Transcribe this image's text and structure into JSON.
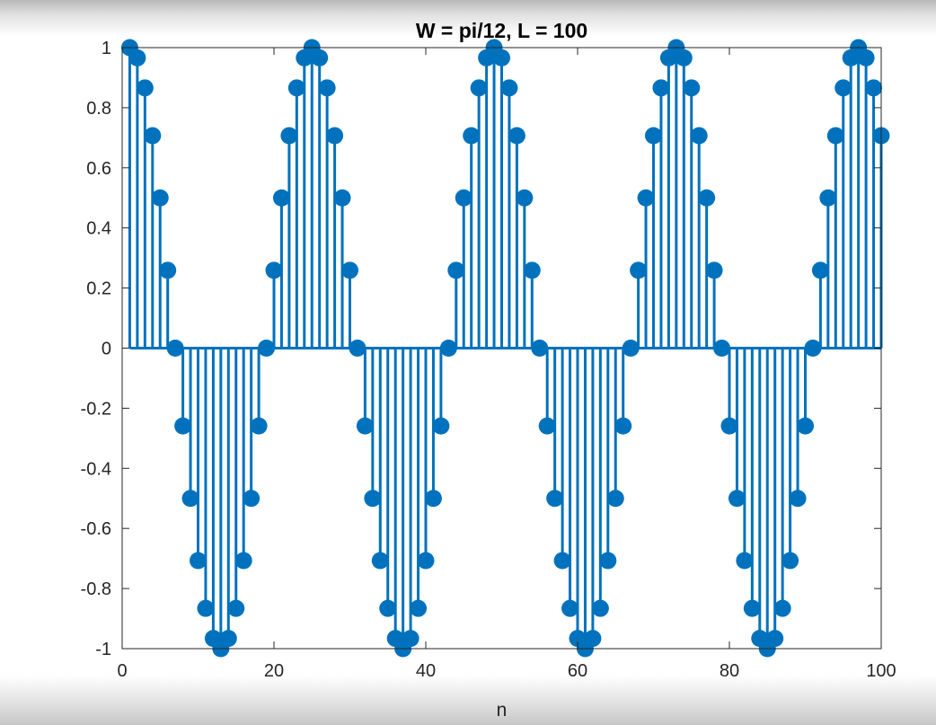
{
  "chart_data": {
    "type": "stem",
    "title": "W = pi/12, L = 100",
    "xlabel": "n",
    "ylabel": "",
    "xlim": [
      0,
      100
    ],
    "ylim": [
      -1,
      1
    ],
    "xticks": [
      0,
      20,
      40,
      60,
      80,
      100
    ],
    "xtick_labels": [
      "0",
      "20",
      "40",
      "60",
      "80",
      "100"
    ],
    "yticks": [
      1,
      0.8,
      0.6,
      0.4,
      0.2,
      0,
      -0.2,
      -0.4,
      -0.6,
      -0.8,
      -1
    ],
    "ytick_labels": [
      "1",
      "0.8",
      "0.6",
      "0.4",
      "0.2",
      "0",
      "-0.2",
      "-0.4",
      "-0.6",
      "-0.8",
      "-1"
    ],
    "grid": false,
    "color": "#0072BD",
    "series": [
      {
        "x": [
          1,
          2,
          3,
          4,
          5,
          6,
          7,
          8,
          9,
          10,
          11,
          12,
          13,
          14,
          15,
          16,
          17,
          18,
          19,
          20,
          21,
          22,
          23,
          24,
          25,
          26,
          27,
          28,
          29,
          30,
          31,
          32,
          33,
          34,
          35,
          36,
          37,
          38,
          39,
          40,
          41,
          42,
          43,
          44,
          45,
          46,
          47,
          48,
          49,
          50,
          51,
          52,
          53,
          54,
          55,
          56,
          57,
          58,
          59,
          60,
          61,
          62,
          63,
          64,
          65,
          66,
          67,
          68,
          69,
          70,
          71,
          72,
          73,
          74,
          75,
          76,
          77,
          78,
          79,
          80,
          81,
          82,
          83,
          84,
          85,
          86,
          87,
          88,
          89,
          90,
          91,
          92,
          93,
          94,
          95,
          96,
          97,
          98,
          99,
          100
        ],
        "y": [
          1,
          0.966,
          0.866,
          0.707,
          0.5,
          0.259,
          0,
          -0.259,
          -0.5,
          -0.707,
          -0.866,
          -0.966,
          -1,
          -0.966,
          -0.866,
          -0.707,
          -0.5,
          -0.259,
          0,
          0.259,
          0.5,
          0.707,
          0.866,
          0.966,
          1,
          0.966,
          0.866,
          0.707,
          0.5,
          0.259,
          0,
          -0.259,
          -0.5,
          -0.707,
          -0.866,
          -0.966,
          -1,
          -0.966,
          -0.866,
          -0.707,
          -0.5,
          -0.259,
          0,
          0.259,
          0.5,
          0.707,
          0.866,
          0.966,
          1,
          0.966,
          0.866,
          0.707,
          0.5,
          0.259,
          0,
          -0.259,
          -0.5,
          -0.707,
          -0.866,
          -0.966,
          -1,
          -0.966,
          -0.866,
          -0.707,
          -0.5,
          -0.259,
          0,
          0.259,
          0.5,
          0.707,
          0.866,
          0.966,
          1,
          0.966,
          0.866,
          0.707,
          0.5,
          0.259,
          0,
          -0.259,
          -0.5,
          -0.707,
          -0.866,
          -0.966,
          -1,
          -0.966,
          -0.866,
          -0.707,
          -0.5,
          -0.259,
          0,
          0.259,
          0.5,
          0.707,
          0.866,
          0.966,
          1,
          0.966,
          0.866,
          0.707
        ]
      }
    ]
  }
}
